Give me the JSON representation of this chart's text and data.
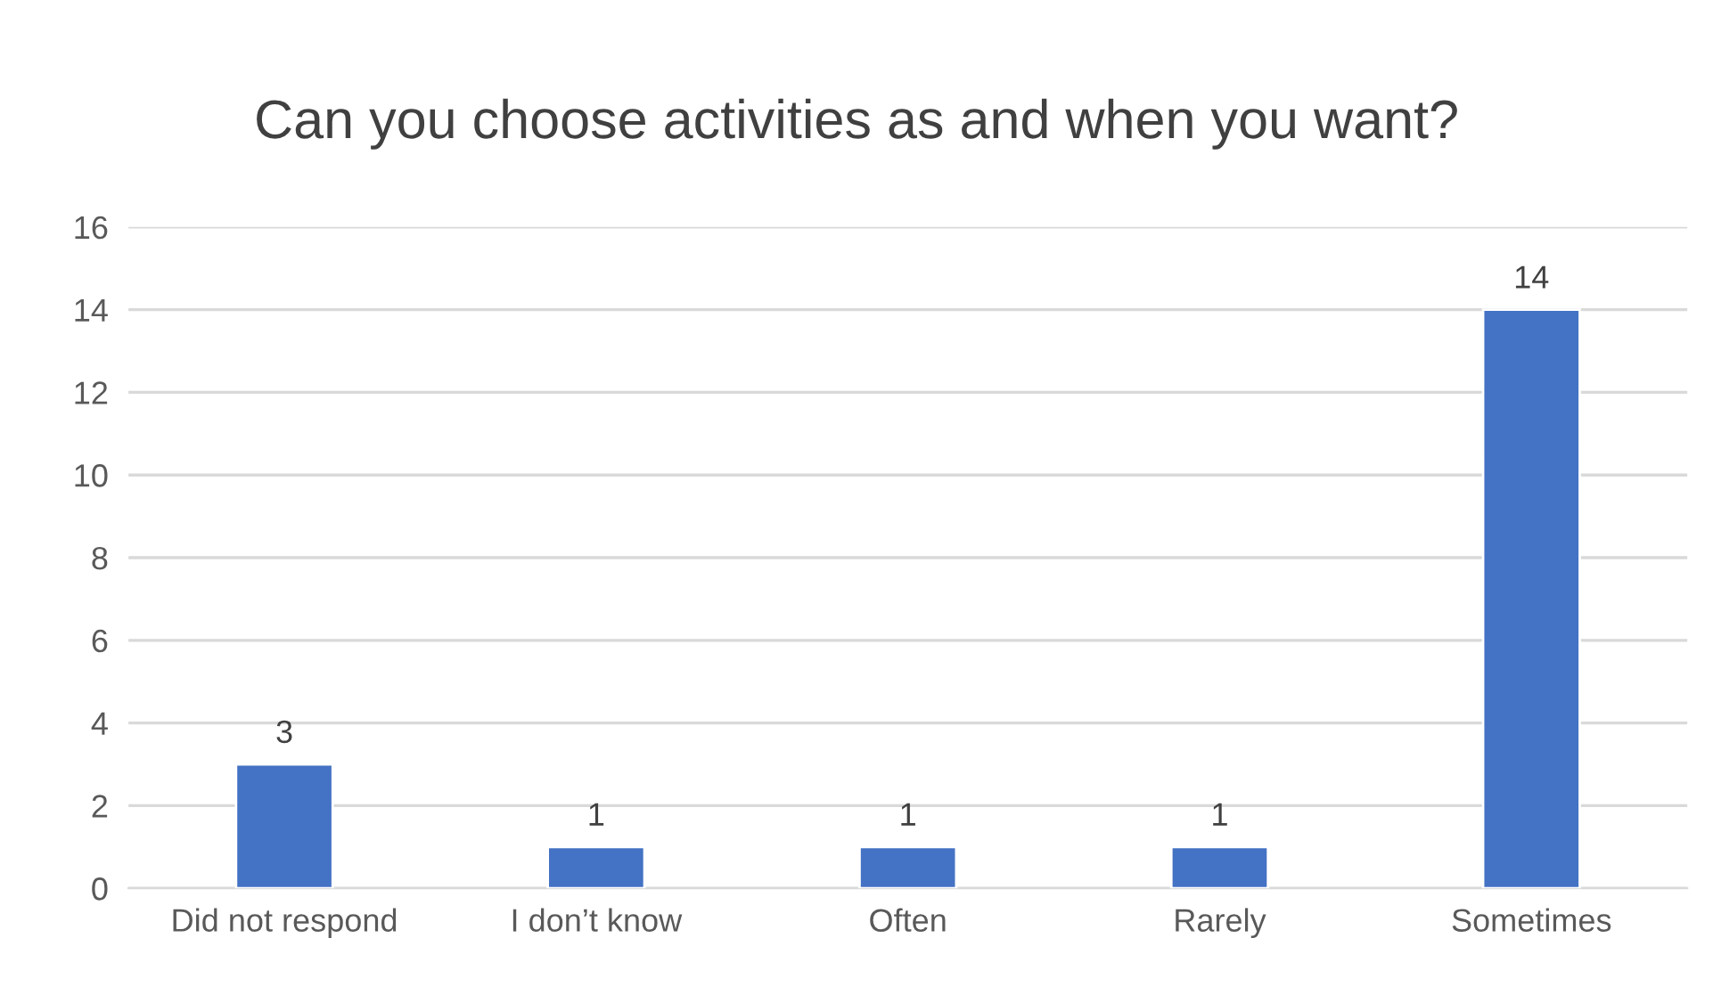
{
  "chart_data": {
    "type": "bar",
    "title": "Can you choose activities as and when you want?",
    "categories": [
      "Did not respond",
      "I don’t know",
      "Often",
      "Rarely",
      "Sometimes"
    ],
    "values": [
      3,
      1,
      1,
      1,
      14
    ],
    "color": "#4472c4",
    "ylim": [
      0,
      16
    ],
    "yticks": [
      0,
      2,
      4,
      6,
      8,
      10,
      12,
      14,
      16
    ],
    "grid": "y",
    "data_labels": true,
    "legend": false
  }
}
